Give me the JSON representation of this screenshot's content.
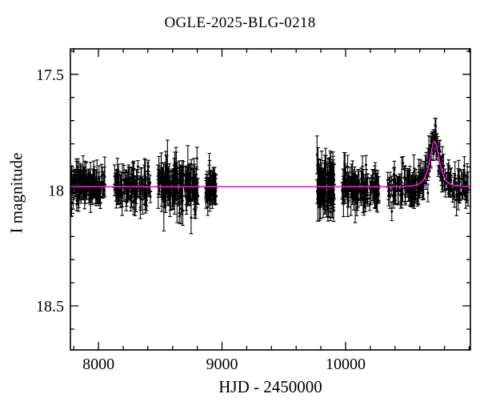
{
  "page": {
    "background": "#ffffff",
    "text_color": "#000000"
  },
  "chart_data": {
    "type": "scatter",
    "title": "OGLE-2025-BLG-0218",
    "xlabel": "HJD - 2450000",
    "ylabel": "I magnitude",
    "xlim": [
      7773,
      11010
    ],
    "ylim": [
      17.39,
      18.69
    ],
    "y_inverted": true,
    "grid": false,
    "legend": null,
    "axis_color": "#000000",
    "x_ticks": {
      "major_values": [
        8000,
        9000,
        10000
      ],
      "major_labels": [
        "8000",
        "9000",
        "10000"
      ],
      "minor_step": 200
    },
    "y_ticks": {
      "major_values": [
        17.5,
        18,
        18.5
      ],
      "major_labels": [
        "17.5",
        "18",
        "18.5"
      ],
      "minor_step": 0.1
    },
    "point_style": {
      "color": "#000000",
      "radius": 1.5,
      "errorbar_caps": true,
      "typical_error_mag": 0.035
    },
    "model_curve": {
      "model": "paczynski",
      "color": "#ee18dd",
      "baseline_mag": 17.985,
      "peak_mag": 17.79,
      "t0": 10720,
      "tE": 40,
      "u0": 1.28
    },
    "observations": {
      "seed": 218,
      "baseline_mag": 17.985,
      "seasons": [
        {
          "t_start": 7776,
          "t_end": 8052,
          "n": 135,
          "sigma": 0.033
        },
        {
          "t_start": 8130,
          "t_end": 8422,
          "n": 120,
          "sigma": 0.033
        },
        {
          "t_start": 8480,
          "t_end": 8810,
          "n": 155,
          "sigma": 0.041
        },
        {
          "t_start": 8868,
          "t_end": 8952,
          "n": 50,
          "sigma": 0.034
        },
        {
          "t_start": 9768,
          "t_end": 9908,
          "n": 95,
          "sigma": 0.048
        },
        {
          "t_start": 9968,
          "t_end": 10272,
          "n": 115,
          "sigma": 0.036
        },
        {
          "t_start": 10340,
          "t_end": 10656,
          "n": 105,
          "sigma": 0.035
        },
        {
          "t_start": 10660,
          "t_end": 10995,
          "n": 115,
          "sigma": 0.032
        }
      ]
    }
  }
}
